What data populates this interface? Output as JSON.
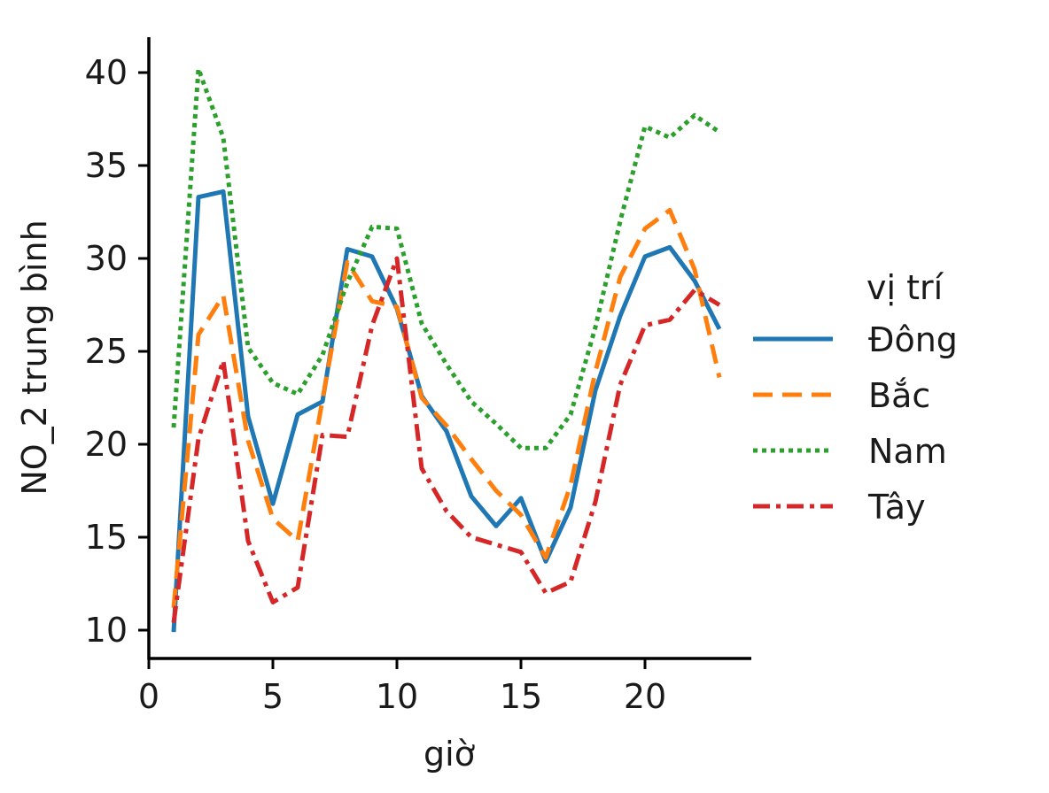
{
  "chart_data": {
    "type": "line",
    "title": "",
    "xlabel": "giờ",
    "ylabel": "NO_2 trung bình",
    "xlim": [
      0,
      24
    ],
    "ylim": [
      9,
      42
    ],
    "xticks": [
      0,
      5,
      10,
      15,
      20
    ],
    "yticks": [
      10,
      15,
      20,
      25,
      30,
      35,
      40
    ],
    "grid": false,
    "legend": {
      "title": "vị trí",
      "position": "right"
    },
    "x": [
      1,
      2,
      3,
      4,
      5,
      6,
      7,
      8,
      9,
      10,
      11,
      12,
      13,
      14,
      15,
      16,
      17,
      18,
      19,
      20,
      21,
      22,
      23
    ],
    "series": [
      {
        "name": "Đông",
        "color": "#1f77b4",
        "style": "solid",
        "values": [
          9.9,
          33.3,
          33.6,
          21.5,
          16.8,
          21.6,
          22.3,
          30.5,
          30.1,
          27.3,
          22.6,
          20.7,
          17.2,
          15.6,
          17.1,
          13.7,
          16.6,
          22.9,
          26.9,
          30.1,
          30.6,
          28.8,
          26.2
        ]
      },
      {
        "name": "Bắc",
        "color": "#ff7f0e",
        "style": "dashed",
        "values": [
          11.2,
          25.9,
          28.0,
          20.2,
          16.0,
          14.8,
          22.4,
          29.8,
          27.7,
          27.4,
          22.5,
          21.0,
          19.2,
          17.5,
          16.2,
          13.9,
          17.8,
          23.9,
          29.0,
          31.6,
          32.6,
          29.4,
          23.6
        ]
      },
      {
        "name": "Nam",
        "color": "#2ca02c",
        "style": "dotted",
        "values": [
          20.9,
          40.2,
          36.5,
          25.2,
          23.3,
          22.7,
          24.8,
          28.7,
          31.7,
          31.6,
          26.5,
          24.3,
          22.3,
          21.1,
          19.8,
          19.8,
          21.6,
          26.3,
          32.0,
          37.1,
          36.5,
          37.7,
          36.8
        ]
      },
      {
        "name": "Tây",
        "color": "#d62728",
        "style": "dashdot",
        "values": [
          10.4,
          20.3,
          24.5,
          14.8,
          11.5,
          12.3,
          20.5,
          20.4,
          26.4,
          30.0,
          18.7,
          16.4,
          15.0,
          14.6,
          14.2,
          12.0,
          12.6,
          16.9,
          23.2,
          26.4,
          26.7,
          28.3,
          27.5
        ]
      }
    ]
  }
}
